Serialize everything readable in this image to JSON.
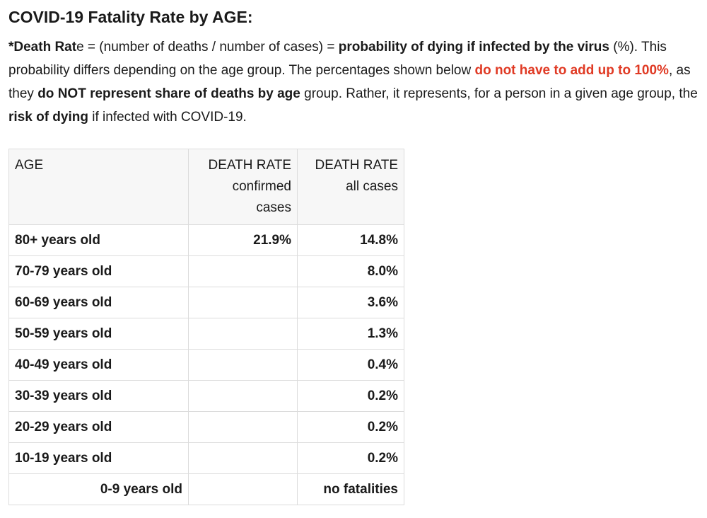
{
  "title": "COVID-19 Fatality Rate by AGE:",
  "intro": {
    "s1": "*Death Rat",
    "s2": "e = (number of deaths / number of cases) = ",
    "s3": "probability of dying if infected by the virus",
    "s4": " (%). This probability differs depending on the age group. The percentages shown below ",
    "s5": "do not have to add up to 100%",
    "s6": ", as they ",
    "s7": "do NOT represent share of deaths by age",
    "s8": " group. Rather, it represents, for a person in a given age group, the ",
    "s9": "risk of dying",
    "s10": " if infected with COVID-19.",
    "highlight_color": "#e03a24"
  },
  "table": {
    "headers": {
      "age": "AGE",
      "confirmed": [
        "DEATH RATE",
        "confirmed",
        "cases"
      ],
      "all": [
        "DEATH RATE",
        "all cases"
      ]
    },
    "rows": [
      {
        "age": "80+ years old",
        "confirmed": "21.9%",
        "all": "14.8%"
      },
      {
        "age": "70-79 years old",
        "confirmed": "",
        "all": "8.0%"
      },
      {
        "age": "60-69 years old",
        "confirmed": "",
        "all": "3.6%"
      },
      {
        "age": "50-59 years old",
        "confirmed": "",
        "all": "1.3%"
      },
      {
        "age": "40-49 years old",
        "confirmed": "",
        "all": "0.4%"
      },
      {
        "age": "30-39 years old",
        "confirmed": "",
        "all": "0.2%"
      },
      {
        "age": "20-29 years old",
        "confirmed": "",
        "all": "0.2%"
      },
      {
        "age": "10-19 years old",
        "confirmed": "",
        "all": "0.2%"
      },
      {
        "age": "0-9 years old",
        "confirmed": "",
        "all": "no fatalities"
      }
    ]
  }
}
